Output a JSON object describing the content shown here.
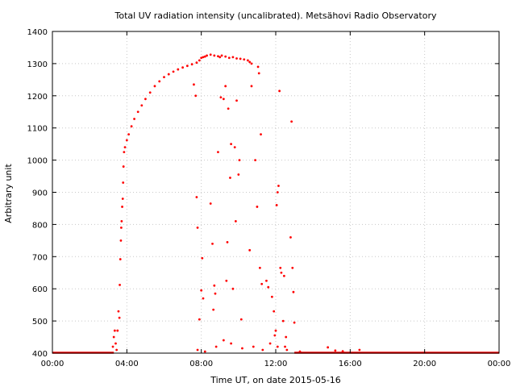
{
  "chart_data": {
    "type": "scatter",
    "title": "Total UV radiation intensity (uncalibrated). Metsähovi Radio Observatory",
    "xlabel": "Time UT, on date 2015-05-16",
    "ylabel": "Arbitrary unit",
    "xlim": [
      0,
      24
    ],
    "ylim": [
      400,
      1400
    ],
    "x_tick_values": [
      0,
      4,
      8,
      12,
      16,
      20,
      24
    ],
    "x_tick_labels": [
      "00:00",
      "04:00",
      "08:00",
      "12:00",
      "16:00",
      "20:00",
      "00:00"
    ],
    "y_tick_values": [
      400,
      500,
      600,
      700,
      800,
      900,
      1000,
      1100,
      1200,
      1300,
      1400
    ],
    "y_tick_labels": [
      "400",
      "500",
      "600",
      "700",
      "800",
      "900",
      "1000",
      "1100",
      "1200",
      "1300",
      "1400"
    ],
    "grid": true,
    "marker_color": "#ff0000",
    "series": [
      {
        "points": [
          [
            3.25,
            420
          ],
          [
            3.3,
            450
          ],
          [
            3.35,
            470
          ],
          [
            3.4,
            430
          ],
          [
            3.45,
            410
          ],
          [
            3.5,
            470
          ],
          [
            3.55,
            530
          ],
          [
            3.6,
            510
          ],
          [
            3.62,
            612
          ],
          [
            3.65,
            692
          ],
          [
            3.68,
            750
          ],
          [
            3.7,
            790
          ],
          [
            3.72,
            810
          ],
          [
            3.75,
            855
          ],
          [
            3.78,
            880
          ],
          [
            3.8,
            930
          ],
          [
            3.82,
            980
          ],
          [
            3.85,
            1025
          ],
          [
            3.9,
            1040
          ],
          [
            4.0,
            1062
          ],
          [
            4.1,
            1080
          ],
          [
            4.25,
            1105
          ],
          [
            4.4,
            1128
          ],
          [
            4.6,
            1150
          ],
          [
            4.8,
            1170
          ],
          [
            5.0,
            1190
          ],
          [
            5.25,
            1210
          ],
          [
            5.5,
            1230
          ],
          [
            5.75,
            1245
          ],
          [
            6.0,
            1258
          ],
          [
            6.25,
            1267
          ],
          [
            6.5,
            1275
          ],
          [
            6.75,
            1282
          ],
          [
            7.0,
            1288
          ],
          [
            7.25,
            1293
          ],
          [
            7.5,
            1298
          ],
          [
            7.75,
            1303
          ],
          [
            7.9,
            1310
          ],
          [
            8.0,
            1318
          ],
          [
            8.1,
            1320
          ],
          [
            8.2,
            1322
          ],
          [
            8.3,
            1325
          ],
          [
            8.5,
            1328
          ],
          [
            8.7,
            1325
          ],
          [
            8.9,
            1323
          ],
          [
            9.0,
            1320
          ],
          [
            9.1,
            1325
          ],
          [
            9.3,
            1322
          ],
          [
            9.5,
            1318
          ],
          [
            9.7,
            1320
          ],
          [
            9.9,
            1316
          ],
          [
            10.1,
            1315
          ],
          [
            10.3,
            1313
          ],
          [
            10.5,
            1310
          ],
          [
            10.6,
            1305
          ],
          [
            10.7,
            1300
          ],
          [
            7.6,
            1235
          ],
          [
            7.7,
            1200
          ],
          [
            7.75,
            885
          ],
          [
            7.8,
            790
          ],
          [
            7.9,
            505
          ],
          [
            8.0,
            595
          ],
          [
            8.05,
            695
          ],
          [
            8.1,
            570
          ],
          [
            8.5,
            865
          ],
          [
            8.6,
            740
          ],
          [
            8.65,
            535
          ],
          [
            8.7,
            610
          ],
          [
            8.75,
            585
          ],
          [
            8.9,
            1025
          ],
          [
            9.05,
            1195
          ],
          [
            9.2,
            1190
          ],
          [
            9.3,
            1230
          ],
          [
            9.35,
            625
          ],
          [
            9.4,
            745
          ],
          [
            9.45,
            1160
          ],
          [
            9.55,
            945
          ],
          [
            9.6,
            1050
          ],
          [
            9.7,
            600
          ],
          [
            9.8,
            1040
          ],
          [
            9.85,
            810
          ],
          [
            9.9,
            1185
          ],
          [
            10.0,
            955
          ],
          [
            10.05,
            1000
          ],
          [
            10.15,
            505
          ],
          [
            10.6,
            720
          ],
          [
            10.7,
            1230
          ],
          [
            10.9,
            1000
          ],
          [
            11.0,
            855
          ],
          [
            11.05,
            1290
          ],
          [
            11.1,
            1270
          ],
          [
            11.15,
            665
          ],
          [
            11.2,
            1080
          ],
          [
            11.25,
            615
          ],
          [
            11.5,
            625
          ],
          [
            11.6,
            605
          ],
          [
            11.8,
            575
          ],
          [
            11.9,
            530
          ],
          [
            11.95,
            455
          ],
          [
            12.0,
            470
          ],
          [
            12.05,
            860
          ],
          [
            12.1,
            900
          ],
          [
            12.15,
            920
          ],
          [
            12.2,
            1215
          ],
          [
            12.25,
            665
          ],
          [
            12.3,
            650
          ],
          [
            12.4,
            500
          ],
          [
            12.45,
            640
          ],
          [
            12.5,
            420
          ],
          [
            12.55,
            450
          ],
          [
            12.8,
            760
          ],
          [
            12.85,
            1120
          ],
          [
            12.9,
            665
          ],
          [
            12.95,
            590
          ],
          [
            13.0,
            495
          ],
          [
            7.8,
            410
          ],
          [
            8.2,
            405
          ],
          [
            8.8,
            420
          ],
          [
            9.2,
            440
          ],
          [
            9.6,
            430
          ],
          [
            10.2,
            415
          ],
          [
            10.8,
            420
          ],
          [
            11.3,
            410
          ],
          [
            11.7,
            430
          ],
          [
            12.1,
            420
          ],
          [
            12.6,
            410
          ],
          [
            13.3,
            405
          ],
          [
            14.8,
            418
          ],
          [
            15.2,
            408
          ],
          [
            15.6,
            406
          ],
          [
            16.5,
            410
          ]
        ]
      }
    ],
    "baseline": {
      "value": 400,
      "x_ranges": [
        [
          0,
          3.3
        ],
        [
          13.0,
          24
        ]
      ]
    }
  }
}
